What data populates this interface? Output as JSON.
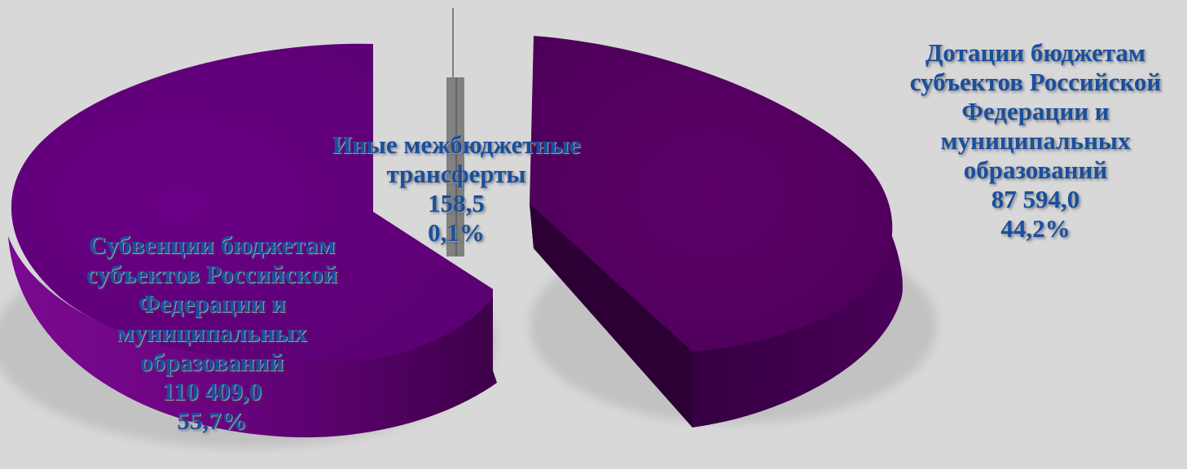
{
  "chart_data": {
    "type": "pie",
    "title": "",
    "style": "3d-exploded",
    "slices": [
      {
        "label_lines": [
          "Дотации бюджетам",
          "субъектов Российской",
          "Федерации и",
          "муниципальных",
          "образований"
        ],
        "value": 87594.0,
        "value_label": "87 594,0",
        "percent_label": "44,2%"
      },
      {
        "label_lines": [
          "Субвенции бюджетам",
          "субъектов Российской",
          "Федерации и",
          "муниципальных",
          "образований"
        ],
        "value": 110409.0,
        "value_label": "110 409,0",
        "percent_label": "55,7%"
      },
      {
        "label_lines": [
          "Иные межбюджетные",
          "трансферты"
        ],
        "value": 158.5,
        "value_label": "158,5",
        "percent_label": "0,1%"
      }
    ],
    "colors": {
      "top": "#62007a",
      "top_right": "#55005f",
      "side": "#34003f",
      "side_light": "#7a0a90",
      "label_text": "#1a4f9c",
      "background": "#d8d8d8"
    }
  }
}
